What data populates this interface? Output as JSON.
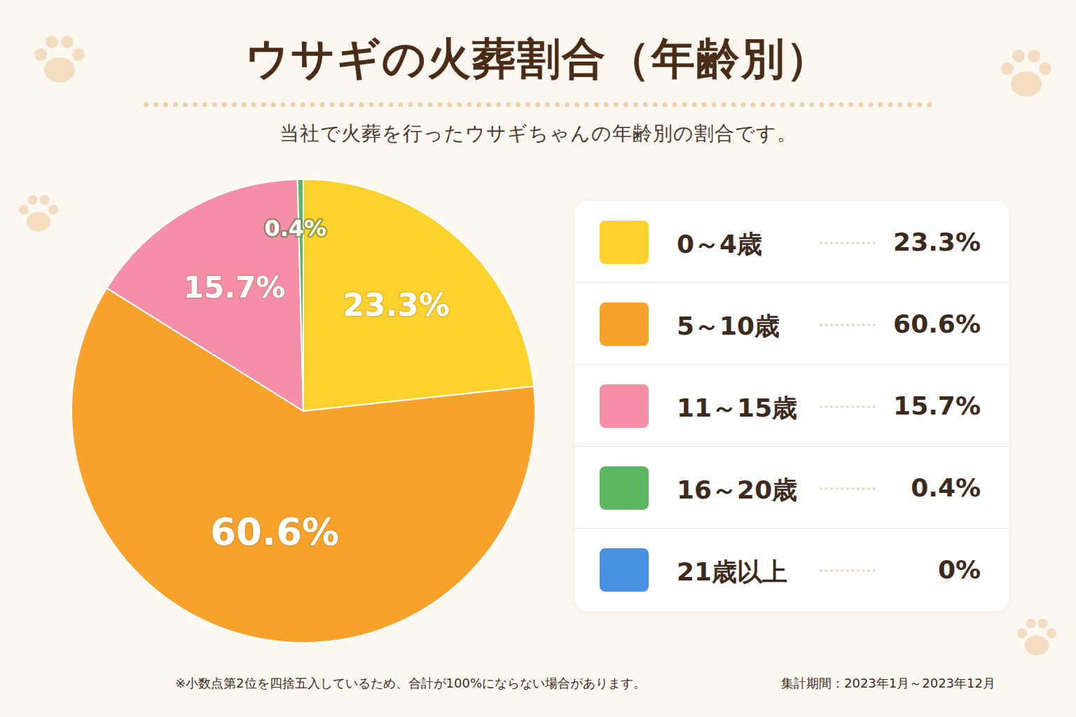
{
  "chart_data": {
    "type": "pie",
    "title": "ウサギの火葬割合（年齢別）",
    "subtitle": "当社で火葬を行ったウサギちゃんの年齢別の割合です。",
    "categories": [
      "0～4歳",
      "5～10歳",
      "11～15歳",
      "16～20歳",
      "21歳以上"
    ],
    "values": [
      23.3,
      60.6,
      15.7,
      0.4,
      0
    ],
    "value_labels": [
      "23.3%",
      "60.6%",
      "15.7%",
      "0.4%",
      "0%"
    ],
    "colors": [
      "#fdd22c",
      "#f9a22b",
      "#f58fa8",
      "#5cb860",
      "#4a90e2"
    ],
    "data_labels": true,
    "legend": "right",
    "annotations": [
      "※小数点第2位を四捨五入しているため、合計が100%にならない場合があります。",
      "集計期間：2023年1月～2023年12月"
    ]
  }
}
